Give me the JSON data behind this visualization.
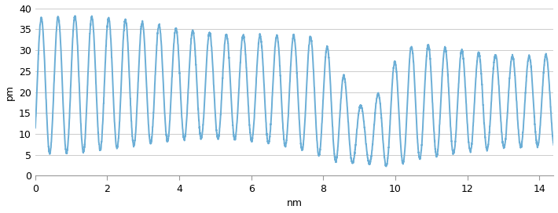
{
  "xlabel": "nm",
  "ylabel": "pm",
  "xlim": [
    0,
    14.4
  ],
  "ylim": [
    0,
    40
  ],
  "xticks": [
    0,
    2,
    4,
    6,
    8,
    10,
    12,
    14
  ],
  "yticks": [
    0,
    5,
    10,
    15,
    20,
    25,
    30,
    35,
    40
  ],
  "line_color": "#6baed6",
  "line_width": 1.4,
  "background_color": "#ffffff",
  "grid_color": "#cccccc",
  "x_start": 0.0,
  "x_end": 14.4,
  "n_points": 4000
}
